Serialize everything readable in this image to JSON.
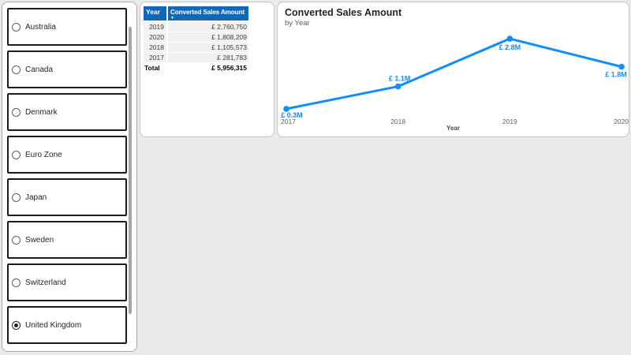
{
  "theme": {
    "page_bg": "#eaeaea",
    "panel_bg": "#ffffff",
    "accent_blue": "#118DFF",
    "table_header_bg": "#1168B8"
  },
  "slicer": {
    "items": [
      {
        "label": "Australia",
        "selected": false
      },
      {
        "label": "Canada",
        "selected": false
      },
      {
        "label": "Denmark",
        "selected": false
      },
      {
        "label": "Euro Zone",
        "selected": false
      },
      {
        "label": "Japan",
        "selected": false
      },
      {
        "label": "Sweden",
        "selected": false
      },
      {
        "label": "Switzerland",
        "selected": false
      },
      {
        "label": "United Kingdom",
        "selected": true
      }
    ]
  },
  "table": {
    "columns": [
      "Year",
      "Converted Sales Amount"
    ],
    "sort_icon": "▼",
    "rows": [
      [
        "2019",
        "£ 2,760,750"
      ],
      [
        "2020",
        "£ 1,808,209"
      ],
      [
        "2018",
        "£ 1,105,573"
      ],
      [
        "2017",
        "£ 281,783"
      ]
    ],
    "total": [
      "Total",
      "£ 5,956,315"
    ]
  },
  "chart_data": {
    "type": "line",
    "title": "Converted Sales Amount",
    "subtitle": "by Year",
    "xlabel": "Year",
    "x": [
      "2017",
      "2018",
      "2019",
      "2020"
    ],
    "series": [
      {
        "name": "Converted Sales Amount",
        "values_millions": [
          0.3,
          1.1,
          2.8,
          1.8
        ],
        "values_exact": [
          281783,
          1105573,
          2760750,
          1808209
        ]
      }
    ],
    "data_labels": [
      "£ 0.3M",
      "£ 1.1M",
      "£ 2.8M",
      "£ 1.8M"
    ],
    "ylim_millions": [
      0,
      3.2
    ],
    "grid": false,
    "legend": "none",
    "line_color": "#118DFF",
    "label_color": "#118DFF",
    "axis_color": "#605E5C"
  }
}
